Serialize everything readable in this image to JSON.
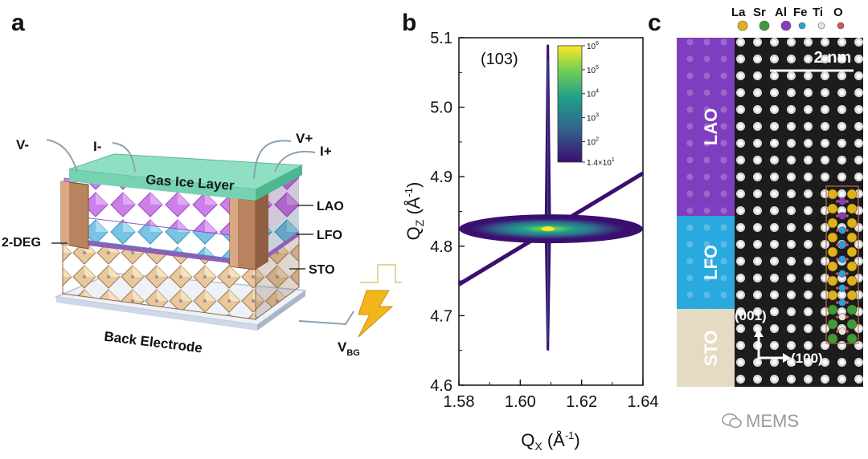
{
  "panels": {
    "a": "a",
    "b": "b",
    "c": "c"
  },
  "panel_a": {
    "top_layer": "Gas Ice Layer",
    "contacts": {
      "v_minus": "V-",
      "i_minus": "I-",
      "v_plus": "V+",
      "i_plus": "I+"
    },
    "layers": {
      "lao": "LAO",
      "lfo": "LFO",
      "sto": "STO",
      "deg": "2-DEG"
    },
    "back_electrode": "Back Electrode",
    "gate_voltage": "V",
    "gate_subscript": "BG",
    "colors": {
      "gas_ice": "#7fd9b8",
      "lao": "#c26be0",
      "lfo": "#6bb7d8",
      "sto": "#e6c28c",
      "electrode": "#b07a55",
      "bolt": "#f2b61c"
    }
  },
  "panel_b": {
    "annotation": "(103)",
    "colorbar_ticks": [
      {
        "base": "10",
        "exp": "6"
      },
      {
        "base": "10",
        "exp": "5"
      },
      {
        "base": "10",
        "exp": "4"
      },
      {
        "base": "10",
        "exp": "3"
      },
      {
        "base": "10",
        "exp": "2"
      },
      {
        "base": "1.4×10",
        "exp": "1"
      }
    ],
    "colormap": [
      "#3b0f70",
      "#31688e",
      "#1f9e89",
      "#6ece58",
      "#fde725"
    ]
  },
  "chart_data": {
    "type": "heatmap",
    "title": "(103)",
    "xlabel": "Q",
    "xlabel_sub": "X",
    "xlabel_unit": " (Å",
    "xlabel_unit_exp": "-1",
    "ylabel": "Q",
    "ylabel_sub": "Z",
    "ylabel_unit": " (Å",
    "ylabel_unit_exp": "-1",
    "xlim": [
      1.58,
      1.64
    ],
    "ylim": [
      4.6,
      5.1
    ],
    "x_ticks": [
      1.58,
      1.6,
      1.62,
      1.64
    ],
    "x_tick_labels": [
      "1.58",
      "1.60",
      "1.62",
      "1.64"
    ],
    "y_ticks": [
      4.6,
      4.7,
      4.8,
      4.9,
      5.0,
      5.1
    ],
    "y_tick_labels": [
      "4.6",
      "4.7",
      "4.8",
      "4.9",
      "5.0",
      "5.1"
    ],
    "peak": {
      "qx": 1.609,
      "qz": 4.825
    },
    "vertical_streak": {
      "qx": 1.609,
      "qz_min": 4.65,
      "qz_max": 5.09
    },
    "horizontal_band": {
      "qz": 4.825,
      "qx_min": 1.58,
      "qx_max": 1.64
    },
    "diagonal_streak": {
      "from": [
        1.58,
        4.745
      ],
      "to": [
        1.64,
        4.905
      ]
    },
    "colorbar_range": [
      14,
      1000000
    ]
  },
  "panel_c": {
    "scalebar": "2 nm",
    "elements": [
      {
        "symbol": "La",
        "color": "#e0b21a"
      },
      {
        "symbol": "Sr",
        "color": "#3f9a3a"
      },
      {
        "symbol": "Al",
        "color": "#8a3bbf"
      },
      {
        "symbol": "Fe",
        "color": "#2f9fdc"
      },
      {
        "symbol": "Ti",
        "color": "#e8e4d6"
      },
      {
        "symbol": "O",
        "color": "#d8505a"
      }
    ],
    "layers": {
      "lao": "LAO",
      "lfo": "LFO",
      "sto": "STO"
    },
    "axis_001": "(001)",
    "axis_100": "(100)",
    "colors": {
      "lao": "#7f3dc0",
      "lfo": "#29a9dd",
      "sto": "#e4dbc2"
    }
  },
  "watermark": "MEMS"
}
